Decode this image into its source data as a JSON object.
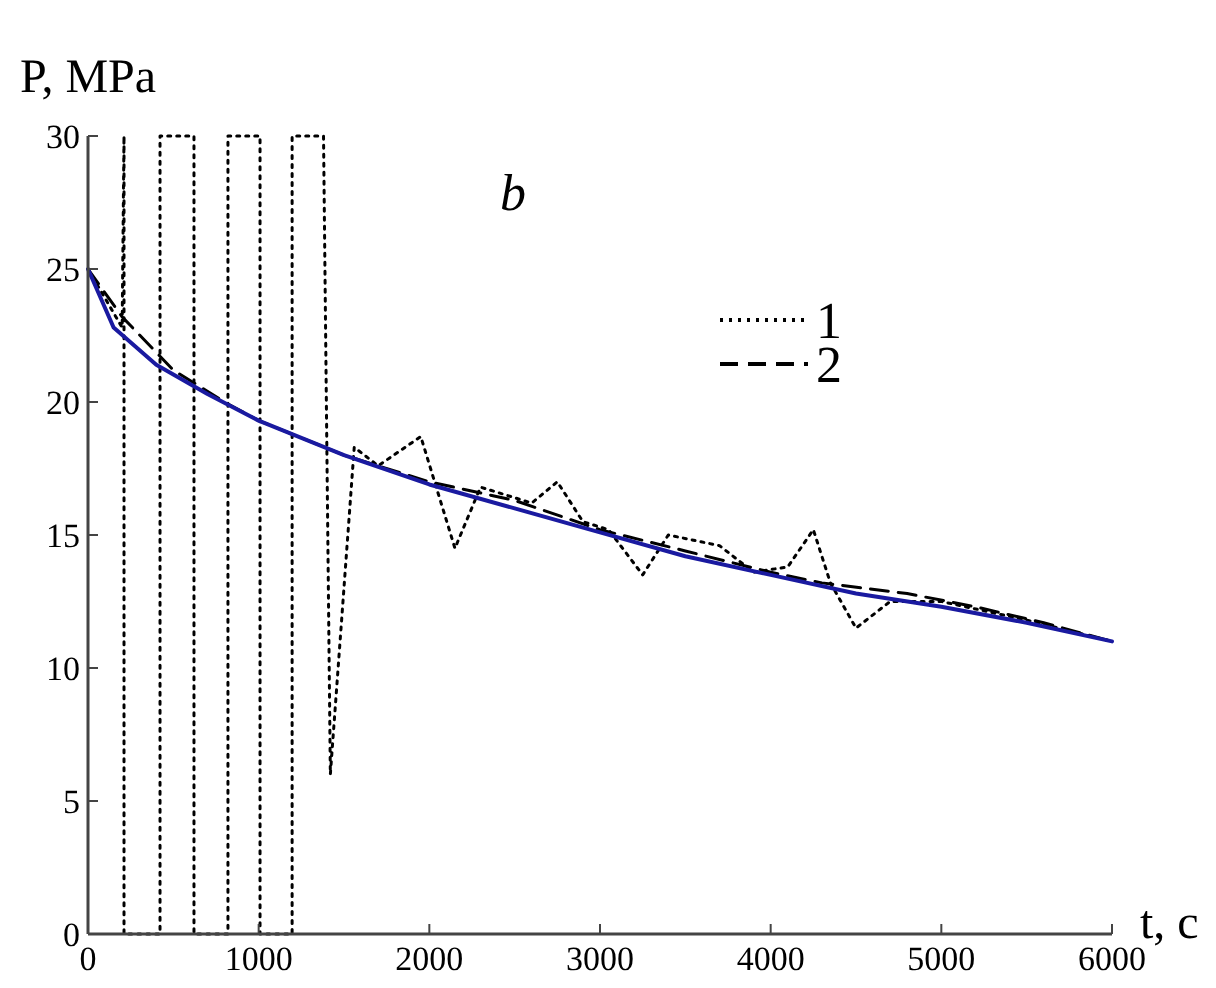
{
  "chart_data": {
    "type": "line",
    "xlabel": "t, c",
    "ylabel": "P, MPa",
    "annotations": [
      "b"
    ],
    "xlim": [
      0,
      6000
    ],
    "xticks": [
      0,
      1000,
      2000,
      3000,
      4000,
      5000,
      6000
    ],
    "ylim": [
      0,
      30
    ],
    "yticks": [
      0,
      5,
      10,
      15,
      20,
      25,
      30
    ],
    "grid": false,
    "legend": "top right",
    "series": [
      {
        "name": "1",
        "color": "#000000",
        "line_style": "dotted",
        "x": [
          0,
          200,
          211,
          211,
          422,
          422,
          621,
          621,
          820,
          820,
          1008,
          1008,
          1196,
          1196,
          1380,
          1420,
          1560,
          1700,
          1950,
          2150,
          2300,
          2600,
          2750,
          2900,
          3050,
          3250,
          3400,
          3700,
          3900,
          4100,
          4250,
          4350,
          4500,
          4700,
          5000,
          5500,
          6000
        ],
        "values": [
          25,
          22.8,
          30,
          0,
          0,
          30,
          30,
          0,
          0,
          30,
          30,
          0,
          0,
          30,
          30,
          6,
          18.3,
          17.6,
          18.7,
          14.5,
          16.8,
          16.2,
          17,
          15.5,
          15.2,
          13.5,
          15,
          14.6,
          13.6,
          13.8,
          15.2,
          13.2,
          11.5,
          12.5,
          12.5,
          11.8,
          11
        ]
      },
      {
        "name": "2",
        "color": "#000000",
        "line_style": "dashed",
        "x": [
          0,
          200,
          500,
          800,
          1000,
          1500,
          2000,
          2500,
          3000,
          3500,
          4000,
          4300,
          4800,
          5200,
          5600,
          6000
        ],
        "values": [
          25,
          23.2,
          21.2,
          20,
          19.3,
          18,
          17,
          16.3,
          15.2,
          14.4,
          13.6,
          13.2,
          12.8,
          12.3,
          11.7,
          11
        ]
      },
      {
        "color": "#1a1aa0",
        "line_style": "solid",
        "x": [
          0,
          150,
          400,
          700,
          1000,
          1500,
          2000,
          2500,
          3000,
          3500,
          4000,
          4500,
          5000,
          5500,
          6000
        ],
        "values": [
          25,
          22.8,
          21.4,
          20.3,
          19.3,
          18,
          16.9,
          16,
          15.1,
          14.2,
          13.5,
          12.8,
          12.3,
          11.7,
          11
        ]
      }
    ]
  }
}
